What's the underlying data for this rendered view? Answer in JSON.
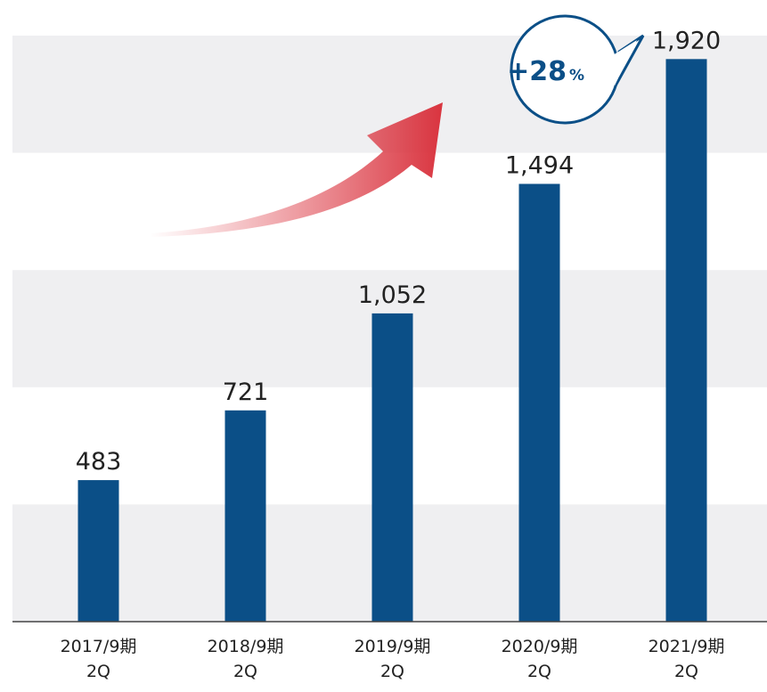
{
  "chart_data": {
    "type": "bar",
    "categories": [
      "2017/9期\n2Q",
      "2018/9期\n2Q",
      "2019/9期\n2Q",
      "2020/9期\n2Q",
      "2021/9期\n2Q"
    ],
    "values": [
      483,
      721,
      1052,
      1494,
      1920
    ],
    "value_labels": [
      "483",
      "721",
      "1,052",
      "1,494",
      "1,920"
    ],
    "color": "#0b4f87",
    "ylim": [
      0,
      2000
    ],
    "yticks": [
      0,
      400,
      800,
      1200,
      1600,
      2000
    ],
    "grid": true,
    "annotation": {
      "value": "+28",
      "unit": "%"
    }
  }
}
